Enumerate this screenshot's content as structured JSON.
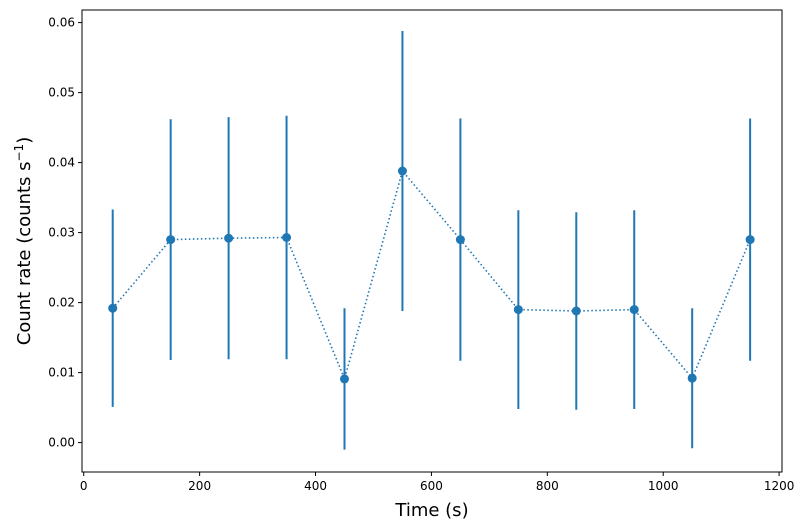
{
  "chart_data": {
    "type": "scatter",
    "xlabel": "Time (s)",
    "ylabel_parts": {
      "main": "Count rate (counts s",
      "sup": "−1",
      "end": ")"
    },
    "xlim": [
      -3,
      1205
    ],
    "ylim": [
      -0.0042,
      0.0618
    ],
    "x_ticks": [
      0,
      200,
      400,
      600,
      800,
      1000,
      1200
    ],
    "x_tick_labels": [
      "0",
      "200",
      "400",
      "600",
      "800",
      "1000",
      "1200"
    ],
    "y_ticks": [
      0.0,
      0.01,
      0.02,
      0.03,
      0.04,
      0.05,
      0.06
    ],
    "y_tick_labels": [
      "0.00",
      "0.01",
      "0.02",
      "0.03",
      "0.04",
      "0.05",
      "0.06"
    ],
    "grid": false,
    "series_color": "#1f77b4",
    "line_style": "dotted",
    "x": [
      50,
      150,
      250,
      350,
      450,
      550,
      650,
      750,
      850,
      950,
      1050,
      1150
    ],
    "y": [
      0.0192,
      0.029,
      0.0292,
      0.0293,
      0.0091,
      0.0388,
      0.029,
      0.019,
      0.0188,
      0.019,
      0.0092,
      0.029
    ],
    "yerr": [
      0.0141,
      0.0172,
      0.0173,
      0.0174,
      0.0101,
      0.02,
      0.0173,
      0.0142,
      0.0141,
      0.0142,
      0.01,
      0.0173
    ]
  }
}
